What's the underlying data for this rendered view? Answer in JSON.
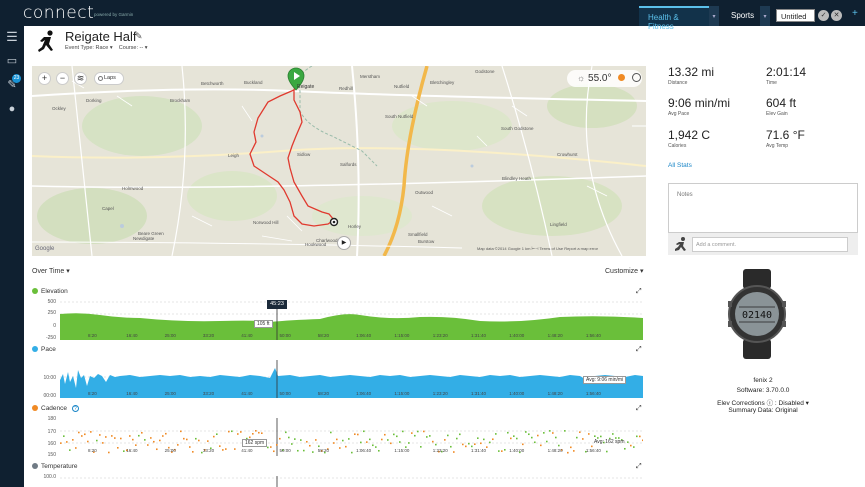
{
  "app": {
    "logo": "connect",
    "logo_sub": "powered by Garmin"
  },
  "top_nav": {
    "tabs": [
      {
        "label": "Health & Fitness"
      },
      {
        "label": "Sports"
      }
    ],
    "untitled": "Untitled",
    "plus": "+"
  },
  "sidebar": {
    "badge": "23"
  },
  "activity": {
    "title": "Reigate Half",
    "event_type_label": "Event Type: Race ▾",
    "course_label": "Course: -- ▾"
  },
  "map": {
    "laps_label": "Laps",
    "temperature": "55.0°",
    "attribution": "Map data ©2014 Google   1 km ⊢⊣   Terms of Use   Report a map error",
    "google": "Google",
    "towns": [
      "Reigate",
      "Redhill",
      "Dorking",
      "Brockham",
      "Betchworth",
      "Leigh",
      "Sidlow",
      "Horley",
      "Salfords",
      "Nutfield",
      "Bletchingley",
      "South Nutfield",
      "Outwood",
      "Smallfield",
      "Burstow",
      "Holmwood",
      "Newdigate",
      "Charlwood",
      "Norwood Hill",
      "Hookwood",
      "Godstone",
      "South Godstone",
      "Blindley Heath",
      "Lingfield",
      "Crowhurst",
      "Buckland",
      "Merstham",
      "Ockley",
      "Capel",
      "Beare Green"
    ]
  },
  "charts_header": {
    "over_time": "Over Time ▾",
    "customize": "Customize ▾"
  },
  "charts": {
    "elevation": {
      "label": "Elevation",
      "color": "#6abf3a",
      "yticks": [
        "500",
        "250",
        "0",
        "-250"
      ],
      "hover_label": "105 ft",
      "hover_time": "45:23"
    },
    "pace": {
      "label": "Pace",
      "color": "#33aee6",
      "yticks": [
        "10:00",
        "00:00"
      ],
      "avg_label": "Avg: 9:06 min/mi"
    },
    "cadence": {
      "label": "Cadence",
      "color": "#f08a24",
      "yticks": [
        "180",
        "170",
        "160",
        "150"
      ],
      "hover_label": "162 spm",
      "avg_label": "Avg: 162 spm"
    },
    "temperature": {
      "label": "Temperature",
      "color": "#707b85",
      "yticks": [
        "100.0"
      ]
    },
    "xticks": [
      "8:20",
      "16:40",
      "25:00",
      "33:20",
      "41:40",
      "50:00",
      "58:20",
      "1:06:40",
      "1:15:00",
      "1:23:20",
      "1:31:40",
      "1:40:00",
      "1:48:20",
      "1:56:40"
    ]
  },
  "stats": [
    {
      "value": "13.32 mi",
      "label": "Distance"
    },
    {
      "value": "2:01:14",
      "label": "Time"
    },
    {
      "value": "9:06 min/mi",
      "label": "Avg Pace"
    },
    {
      "value": "604 ft",
      "label": "Elev Gain"
    },
    {
      "value": "1,942 C",
      "label": "Calories"
    },
    {
      "value": "71.6 °F",
      "label": "Avg Temp"
    }
  ],
  "all_stats": "All Stats",
  "notes_placeholder": "Notes",
  "comment_placeholder": "Add a comment.",
  "device": {
    "watch_face": "02140",
    "name": "fenix 2",
    "software": "Software: 3.70.0.0",
    "elev_corrections": "Elev Corrections  ⓘ : Disabled ▾",
    "summary": "Summary Data: Original"
  }
}
